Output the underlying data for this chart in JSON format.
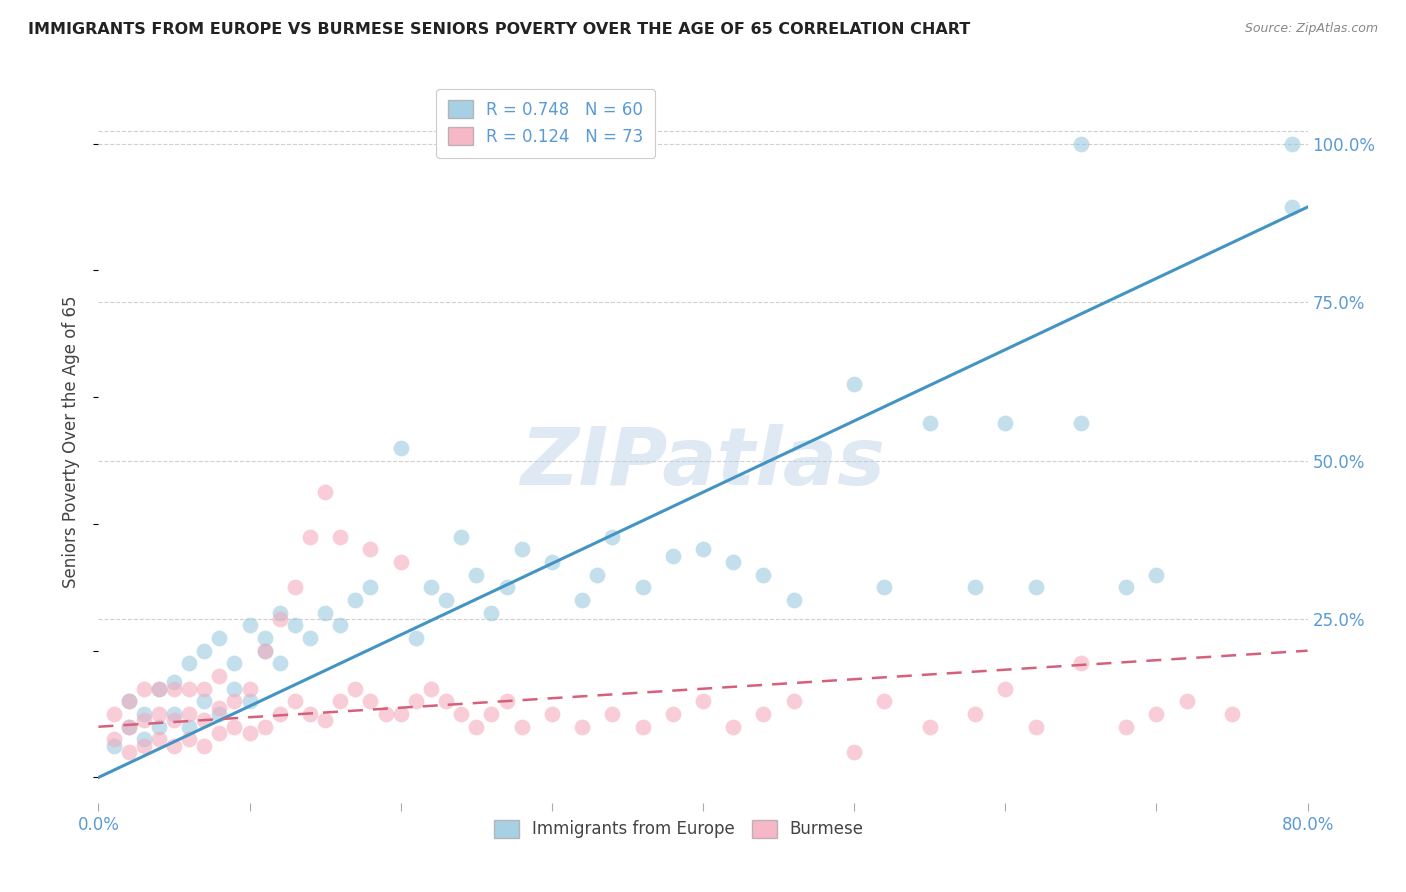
{
  "title": "IMMIGRANTS FROM EUROPE VS BURMESE SENIORS POVERTY OVER THE AGE OF 65 CORRELATION CHART",
  "source": "Source: ZipAtlas.com",
  "ylabel": "Seniors Poverty Over the Age of 65",
  "ytick_labels": [
    "100.0%",
    "75.0%",
    "50.0%",
    "25.0%"
  ],
  "ytick_values": [
    1.0,
    0.75,
    0.5,
    0.25
  ],
  "xlim": [
    0.0,
    0.8
  ],
  "ylim": [
    -0.04,
    1.1
  ],
  "blue_R": 0.748,
  "blue_N": 60,
  "pink_R": 0.124,
  "pink_N": 73,
  "blue_color": "#92c5de",
  "blue_line_color": "#4393c3",
  "pink_color": "#f4a5b8",
  "pink_line_color": "#d6607a",
  "legend_label_blue": "Immigrants from Europe",
  "legend_label_pink": "Burmese",
  "watermark": "ZIPatlas",
  "blue_line_x0": 0.0,
  "blue_line_y0": 0.0,
  "blue_line_x1": 0.8,
  "blue_line_y1": 0.9,
  "pink_line_x0": 0.0,
  "pink_line_y0": 0.08,
  "pink_line_x1": 0.8,
  "pink_line_y1": 0.2,
  "blue_x": [
    0.01,
    0.02,
    0.02,
    0.03,
    0.03,
    0.04,
    0.04,
    0.05,
    0.05,
    0.06,
    0.06,
    0.07,
    0.07,
    0.08,
    0.08,
    0.09,
    0.09,
    0.1,
    0.1,
    0.11,
    0.11,
    0.12,
    0.12,
    0.13,
    0.14,
    0.15,
    0.16,
    0.17,
    0.18,
    0.2,
    0.21,
    0.22,
    0.23,
    0.24,
    0.25,
    0.26,
    0.27,
    0.28,
    0.3,
    0.32,
    0.33,
    0.34,
    0.36,
    0.38,
    0.4,
    0.42,
    0.44,
    0.46,
    0.5,
    0.52,
    0.55,
    0.58,
    0.6,
    0.62,
    0.65,
    0.65,
    0.68,
    0.7,
    0.79,
    0.79
  ],
  "blue_y": [
    0.05,
    0.08,
    0.12,
    0.06,
    0.1,
    0.08,
    0.14,
    0.1,
    0.15,
    0.08,
    0.18,
    0.12,
    0.2,
    0.1,
    0.22,
    0.14,
    0.18,
    0.12,
    0.24,
    0.2,
    0.22,
    0.18,
    0.26,
    0.24,
    0.22,
    0.26,
    0.24,
    0.28,
    0.3,
    0.52,
    0.22,
    0.3,
    0.28,
    0.38,
    0.32,
    0.26,
    0.3,
    0.36,
    0.34,
    0.28,
    0.32,
    0.38,
    0.3,
    0.35,
    0.36,
    0.34,
    0.32,
    0.28,
    0.62,
    0.3,
    0.56,
    0.3,
    0.56,
    0.3,
    0.56,
    1.0,
    0.3,
    0.32,
    0.9,
    1.0
  ],
  "pink_x": [
    0.01,
    0.01,
    0.02,
    0.02,
    0.02,
    0.03,
    0.03,
    0.03,
    0.04,
    0.04,
    0.04,
    0.05,
    0.05,
    0.05,
    0.06,
    0.06,
    0.06,
    0.07,
    0.07,
    0.07,
    0.08,
    0.08,
    0.08,
    0.09,
    0.09,
    0.1,
    0.1,
    0.11,
    0.11,
    0.12,
    0.12,
    0.13,
    0.13,
    0.14,
    0.14,
    0.15,
    0.15,
    0.16,
    0.16,
    0.17,
    0.18,
    0.18,
    0.19,
    0.2,
    0.2,
    0.21,
    0.22,
    0.23,
    0.24,
    0.25,
    0.26,
    0.27,
    0.28,
    0.3,
    0.32,
    0.34,
    0.36,
    0.38,
    0.4,
    0.42,
    0.44,
    0.46,
    0.5,
    0.52,
    0.55,
    0.58,
    0.6,
    0.62,
    0.65,
    0.68,
    0.7,
    0.72,
    0.75
  ],
  "pink_y": [
    0.06,
    0.1,
    0.04,
    0.08,
    0.12,
    0.05,
    0.09,
    0.14,
    0.06,
    0.1,
    0.14,
    0.05,
    0.09,
    0.14,
    0.06,
    0.1,
    0.14,
    0.05,
    0.09,
    0.14,
    0.07,
    0.11,
    0.16,
    0.08,
    0.12,
    0.07,
    0.14,
    0.08,
    0.2,
    0.1,
    0.25,
    0.12,
    0.3,
    0.1,
    0.38,
    0.09,
    0.45,
    0.12,
    0.38,
    0.14,
    0.12,
    0.36,
    0.1,
    0.1,
    0.34,
    0.12,
    0.14,
    0.12,
    0.1,
    0.08,
    0.1,
    0.12,
    0.08,
    0.1,
    0.08,
    0.1,
    0.08,
    0.1,
    0.12,
    0.08,
    0.1,
    0.12,
    0.04,
    0.12,
    0.08,
    0.1,
    0.14,
    0.08,
    0.18,
    0.08,
    0.1,
    0.12,
    0.1
  ]
}
